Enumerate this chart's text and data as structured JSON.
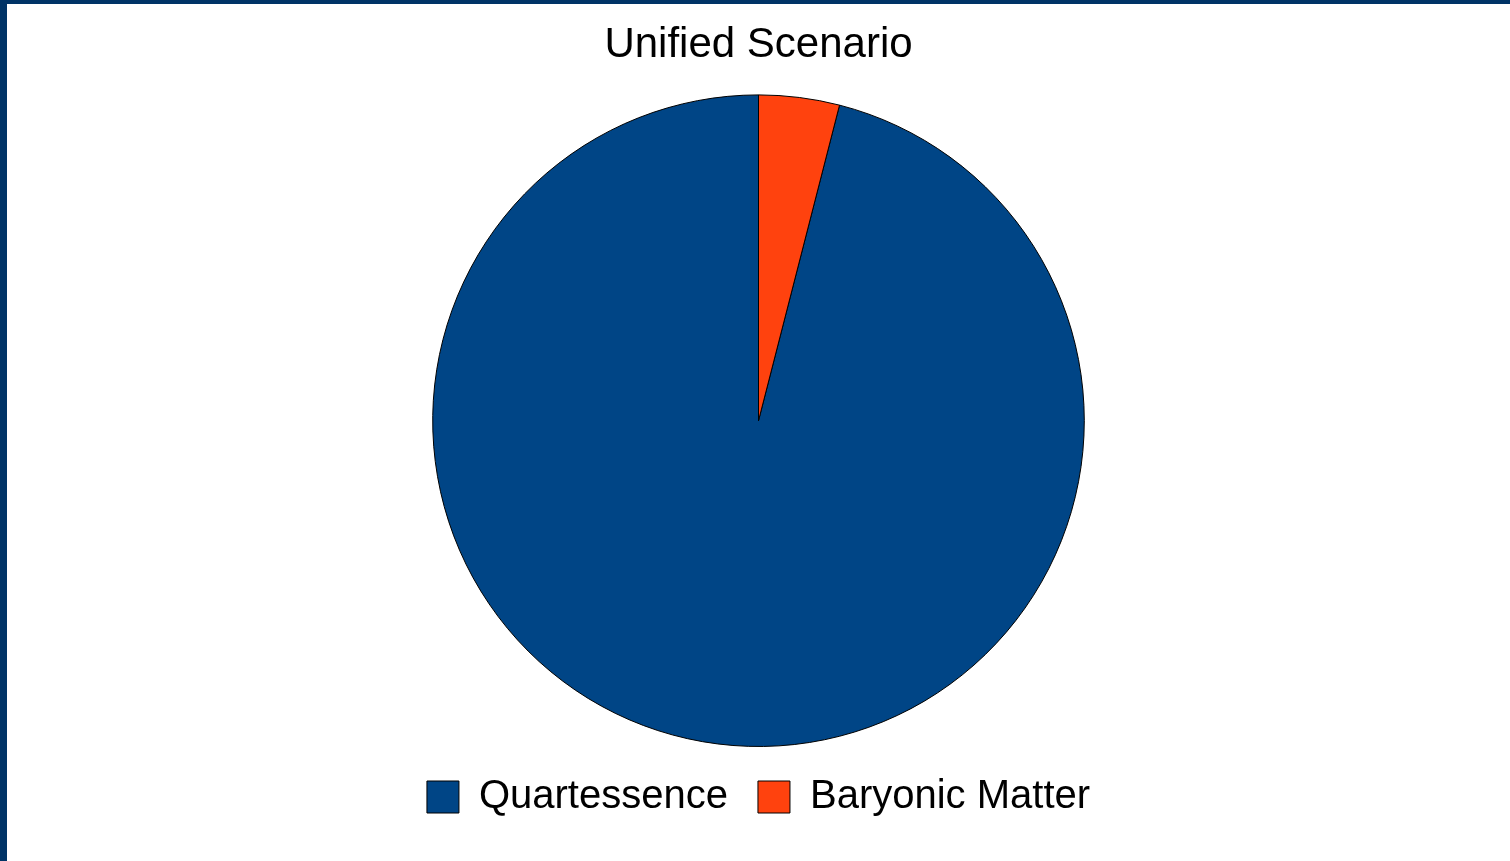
{
  "chart_data": {
    "type": "pie",
    "title": "Unified Scenario",
    "categories": [
      "Quartessence",
      "Baryonic Matter"
    ],
    "values": [
      96,
      4
    ],
    "colors": [
      "#004586",
      "#ff420e"
    ],
    "legend": "bottom"
  }
}
